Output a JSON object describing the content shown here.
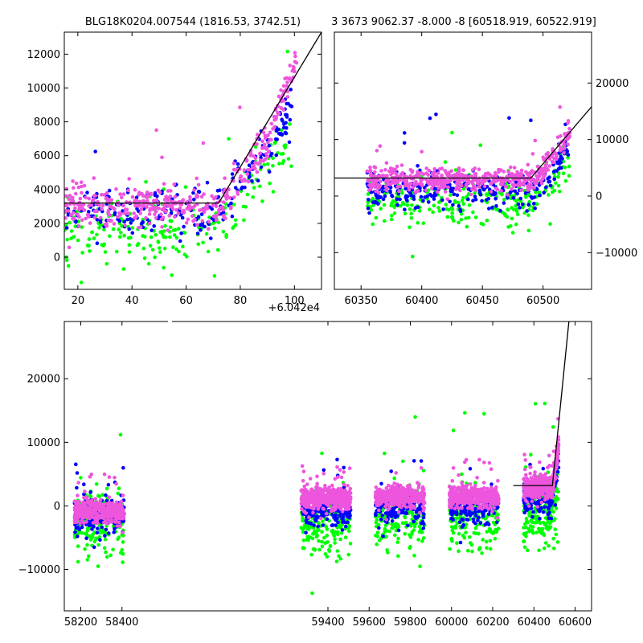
{
  "chart_data": [
    {
      "type": "scatter",
      "title": "BLG18K0204.007544 (1816.53, 3742.51)",
      "xlim": [
        15,
        110
      ],
      "ylim": [
        -1900,
        13300
      ],
      "x_offset_label": "+6.042e4",
      "xticks": [
        20,
        40,
        60,
        80,
        100
      ],
      "xtick_labels": [
        "20",
        "40",
        "60",
        "80",
        "100"
      ],
      "yticks": [
        0,
        2000,
        4000,
        6000,
        8000,
        10000,
        12000
      ],
      "ytick_labels": [
        "0",
        "2000",
        "4000",
        "6000",
        "8000",
        "10000",
        "12000"
      ],
      "ytick_side": "left",
      "model_line": [
        [
          15,
          3200
        ],
        [
          72,
          3200
        ],
        [
          110,
          13300
        ]
      ],
      "series": [
        {
          "color": "#00ff00",
          "x_range": [
            15,
            99
          ],
          "baseline": [
            [
              15,
              1400
            ],
            [
              70,
              1400
            ],
            [
              90,
              5500
            ],
            [
              99,
              6800
            ]
          ],
          "scatter": 1300,
          "count": 220
        },
        {
          "color": "#0000ff",
          "x_range": [
            15,
            99
          ],
          "baseline": [
            [
              15,
              2600
            ],
            [
              70,
              2600
            ],
            [
              90,
              6500
            ],
            [
              99,
              8500
            ]
          ],
          "scatter": 1000,
          "count": 230
        },
        {
          "color": "#ee55dd",
          "x_range": [
            15,
            101
          ],
          "baseline": [
            [
              15,
              3100
            ],
            [
              72,
              3100
            ],
            [
              90,
              6800
            ],
            [
              101,
              12000
            ]
          ],
          "scatter": 800,
          "count": 420
        }
      ]
    },
    {
      "type": "scatter",
      "title": "3 3673 9062.37 -8.000 -8 [60518.919, 60522.919]",
      "xlim": [
        60328,
        60540
      ],
      "ylim": [
        -16500,
        29000
      ],
      "xticks": [
        60350,
        60400,
        60450,
        60500
      ],
      "xtick_labels": [
        "60350",
        "60400",
        "60450",
        "60500"
      ],
      "yticks": [
        -10000,
        0,
        10000,
        20000
      ],
      "ytick_labels": [
        "−10000",
        "0",
        "10000",
        "20000"
      ],
      "ytick_side": "right",
      "model_line": [
        [
          60328,
          3200
        ],
        [
          60490,
          3200
        ],
        [
          60540,
          15800
        ]
      ],
      "series": [
        {
          "color": "#00ff00",
          "x_range": [
            60355,
            60522
          ],
          "baseline": [
            [
              60355,
              -1200
            ],
            [
              60495,
              -1200
            ],
            [
              60522,
              6500
            ]
          ],
          "scatter": 3200,
          "count": 260
        },
        {
          "color": "#0000ff",
          "x_range": [
            60355,
            60522
          ],
          "baseline": [
            [
              60355,
              1200
            ],
            [
              60495,
              1200
            ],
            [
              60522,
              9000
            ]
          ],
          "scatter": 2300,
          "count": 300
        },
        {
          "color": "#ee55dd",
          "x_range": [
            60355,
            60522
          ],
          "baseline": [
            [
              60355,
              3000
            ],
            [
              60495,
              3000
            ],
            [
              60522,
              11000
            ]
          ],
          "scatter": 1400,
          "count": 520
        }
      ]
    },
    {
      "type": "scatter",
      "title": "",
      "xlim": [
        58120,
        60680
      ],
      "ylim": [
        -16500,
        29000
      ],
      "xticks": [
        58200,
        58400,
        59400,
        59600,
        59800,
        60000,
        60200,
        60400,
        60600
      ],
      "xtick_labels": [
        "58200",
        "58400",
        "59400",
        "59600",
        "59800",
        "60000",
        "60200",
        "60400",
        "60600"
      ],
      "yticks": [
        -10000,
        0,
        10000,
        20000
      ],
      "ytick_labels": [
        "−10000",
        "0",
        "10000",
        "20000"
      ],
      "ytick_side": "left",
      "gap_break": [
        58465,
        58475
      ],
      "model_line": [
        [
          60300,
          3200
        ],
        [
          60490,
          3200
        ],
        [
          60570,
          29000
        ]
      ],
      "seasons": [
        {
          "x_range": [
            58170,
            58410
          ],
          "baseline": [
            -800,
            -1500,
            -2200
          ]
        },
        {
          "x_range": [
            59270,
            59510
          ],
          "baseline": [
            1200,
            -500,
            -2800
          ]
        },
        {
          "x_range": [
            59630,
            59870
          ],
          "baseline": [
            1500,
            0,
            -1800
          ]
        },
        {
          "x_range": [
            59990,
            60230
          ],
          "baseline": [
            1500,
            0,
            -1500
          ]
        },
        {
          "x_range": [
            60350,
            60520
          ],
          "baseline": [
            3000,
            1200,
            -1200
          ]
        }
      ],
      "series_colors": [
        "#ee55dd",
        "#0000ff",
        "#00ff00"
      ]
    }
  ]
}
